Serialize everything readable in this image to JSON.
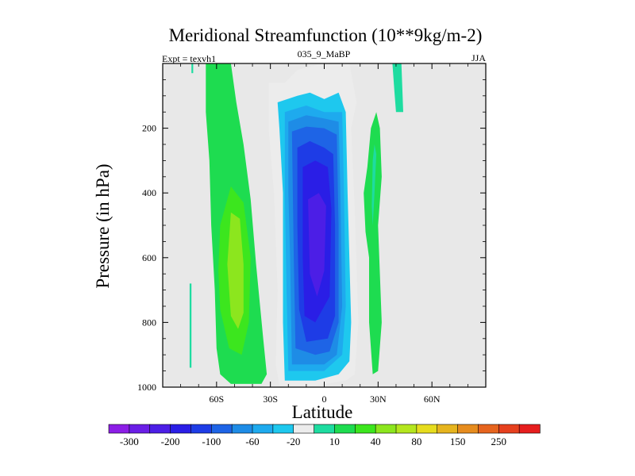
{
  "header": {
    "title": "Meridional Streamfunction (10**9kg/m-2)",
    "left_label": "Expt = texvh1",
    "center_label": "035_9_MaBP",
    "right_label": "JJA"
  },
  "chart_data": {
    "type": "contour",
    "title": "Meridional Streamfunction (10**9kg/m-2)",
    "xlabel": "Latitude",
    "ylabel": "Pressure (in hPa)",
    "xlim": [
      -90,
      90
    ],
    "ylim": [
      1000,
      0
    ],
    "x_ticks": [
      {
        "value": -60,
        "label": "60S"
      },
      {
        "value": -30,
        "label": "30S"
      },
      {
        "value": 0,
        "label": "0"
      },
      {
        "value": 30,
        "label": "30N"
      },
      {
        "value": 60,
        "label": "60N"
      }
    ],
    "y_ticks": [
      {
        "value": 200,
        "label": "200"
      },
      {
        "value": 400,
        "label": "400"
      },
      {
        "value": 600,
        "label": "600"
      },
      {
        "value": 800,
        "label": "800"
      },
      {
        "value": 1000,
        "label": "1000"
      }
    ],
    "background_color": "#e8e8e8",
    "colorbar": {
      "colors": [
        "#8c1ee6",
        "#6a1ee6",
        "#4c1ee6",
        "#2a1ee6",
        "#1e3ce6",
        "#1e64e6",
        "#1e8ce6",
        "#1eaaee",
        "#1ec8ee",
        "#ececec",
        "#1edca0",
        "#1edc50",
        "#3ce61e",
        "#8ce61e",
        "#b4e61e",
        "#e6dc1e",
        "#e6b41e",
        "#e68c1e",
        "#e6641e",
        "#e6401e",
        "#e61e1e"
      ],
      "labels": [
        {
          "boundary": 1,
          "text": "-300"
        },
        {
          "boundary": 3,
          "text": "-200"
        },
        {
          "boundary": 5,
          "text": "-100"
        },
        {
          "boundary": 7,
          "text": "-60"
        },
        {
          "boundary": 9,
          "text": "-20"
        },
        {
          "boundary": 11,
          "text": "10"
        },
        {
          "boundary": 13,
          "text": "40"
        },
        {
          "boundary": 15,
          "text": "80"
        },
        {
          "boundary": 17,
          "text": "150"
        },
        {
          "boundary": 19,
          "text": "250"
        }
      ]
    },
    "regions": [
      {
        "name": "southern-cell-outer",
        "level": 11,
        "poly": [
          [
            -60,
            0
          ],
          [
            -52,
            0
          ],
          [
            -49,
            120
          ],
          [
            -45,
            250
          ],
          [
            -41,
            420
          ],
          [
            -38,
            620
          ],
          [
            -34,
            850
          ],
          [
            -32,
            960
          ],
          [
            -35,
            990
          ],
          [
            -52,
            990
          ],
          [
            -58,
            960
          ],
          [
            -60,
            880
          ],
          [
            -61,
            700
          ],
          [
            -63,
            500
          ],
          [
            -64,
            300
          ],
          [
            -66,
            150
          ],
          [
            -66,
            0
          ]
        ]
      },
      {
        "name": "southern-cell-core",
        "level": 12,
        "poly": [
          [
            -58,
            500
          ],
          [
            -52,
            380
          ],
          [
            -45,
            430
          ],
          [
            -41,
            600
          ],
          [
            -42,
            800
          ],
          [
            -46,
            900
          ],
          [
            -53,
            880
          ],
          [
            -58,
            760
          ],
          [
            -59,
            640
          ]
        ]
      },
      {
        "name": "southern-cell-peak",
        "level": 13,
        "poly": [
          [
            -52,
            460
          ],
          [
            -47,
            480
          ],
          [
            -45,
            620
          ],
          [
            -45,
            770
          ],
          [
            -48,
            820
          ],
          [
            -52,
            780
          ],
          [
            -54,
            620
          ]
        ]
      },
      {
        "name": "polar-cell",
        "level": 10,
        "poly": [
          [
            -75,
            680
          ],
          [
            -74,
            680
          ],
          [
            -74,
            940
          ],
          [
            -75,
            940
          ]
        ]
      },
      {
        "name": "polar-cell-top",
        "level": 10,
        "poly": [
          [
            -74,
            0
          ],
          [
            -73,
            0
          ],
          [
            -73,
            30
          ],
          [
            -74,
            30
          ]
        ]
      },
      {
        "name": "northern-cell",
        "level": 11,
        "poly": [
          [
            22,
            400
          ],
          [
            24,
            320
          ],
          [
            26,
            200
          ],
          [
            29,
            150
          ],
          [
            31,
            200
          ],
          [
            32,
            350
          ],
          [
            30,
            500
          ],
          [
            31,
            650
          ],
          [
            32,
            800
          ],
          [
            30,
            950
          ],
          [
            27,
            960
          ],
          [
            25,
            800
          ],
          [
            25,
            600
          ],
          [
            23,
            520
          ]
        ]
      },
      {
        "name": "northern-cell-core",
        "level": 10,
        "poly": [
          [
            27,
            300
          ],
          [
            28,
            250
          ],
          [
            29,
            280
          ],
          [
            28,
            400
          ],
          [
            27,
            500
          ],
          [
            26.5,
            440
          ]
        ]
      },
      {
        "name": "upper-branch-north",
        "level": 10,
        "poly": [
          [
            38,
            0
          ],
          [
            43,
            0
          ],
          [
            44,
            150
          ],
          [
            40,
            150
          ],
          [
            39,
            80
          ]
        ]
      },
      {
        "name": "hadley-outer",
        "level": 9,
        "poly": [
          [
            -31,
            60
          ],
          [
            -22,
            60
          ],
          [
            -15,
            20
          ],
          [
            -8,
            10
          ],
          [
            0,
            0
          ],
          [
            14,
            0
          ],
          [
            18,
            120
          ],
          [
            15,
            200
          ],
          [
            17,
            450
          ],
          [
            19,
            800
          ],
          [
            17,
            960
          ],
          [
            12,
            980
          ],
          [
            -5,
            995
          ],
          [
            -25,
            995
          ],
          [
            -27,
            930
          ],
          [
            -26,
            700
          ],
          [
            -28,
            400
          ],
          [
            -31,
            200
          ]
        ]
      },
      {
        "name": "hadley-l8",
        "level": 8,
        "poly": [
          [
            -26,
            120
          ],
          [
            -15,
            100
          ],
          [
            -8,
            90
          ],
          [
            0,
            110
          ],
          [
            8,
            90
          ],
          [
            12,
            150
          ],
          [
            13,
            400
          ],
          [
            15,
            800
          ],
          [
            14,
            920
          ],
          [
            8,
            960
          ],
          [
            -5,
            980
          ],
          [
            -22,
            980
          ],
          [
            -23,
            800
          ],
          [
            -23,
            400
          ],
          [
            -25,
            200
          ]
        ]
      },
      {
        "name": "hadley-l7",
        "level": 7,
        "poly": [
          [
            -22,
            150
          ],
          [
            -10,
            130
          ],
          [
            0,
            150
          ],
          [
            10,
            150
          ],
          [
            11,
            400
          ],
          [
            12,
            750
          ],
          [
            10,
            900
          ],
          [
            0,
            950
          ],
          [
            -20,
            950
          ],
          [
            -21,
            700
          ],
          [
            -22,
            400
          ]
        ]
      },
      {
        "name": "hadley-l6",
        "level": 6,
        "poly": [
          [
            -20,
            180
          ],
          [
            -10,
            160
          ],
          [
            0,
            170
          ],
          [
            8,
            180
          ],
          [
            9,
            400
          ],
          [
            10,
            750
          ],
          [
            7,
            900
          ],
          [
            0,
            930
          ],
          [
            -18,
            930
          ],
          [
            -19,
            600
          ],
          [
            -20,
            400
          ]
        ]
      },
      {
        "name": "hadley-l5",
        "level": 5,
        "poly": [
          [
            -18,
            210
          ],
          [
            -10,
            195
          ],
          [
            0,
            200
          ],
          [
            7,
            220
          ],
          [
            8,
            500
          ],
          [
            8,
            800
          ],
          [
            3,
            890
          ],
          [
            -5,
            900
          ],
          [
            -16,
            880
          ],
          [
            -17,
            600
          ]
        ]
      },
      {
        "name": "hadley-l4",
        "level": 4,
        "poly": [
          [
            -15,
            260
          ],
          [
            -8,
            240
          ],
          [
            0,
            260
          ],
          [
            5,
            280
          ],
          [
            6,
            500
          ],
          [
            6,
            780
          ],
          [
            2,
            850
          ],
          [
            -10,
            860
          ],
          [
            -14,
            760
          ],
          [
            -15,
            500
          ]
        ]
      },
      {
        "name": "hadley-l3",
        "level": 3,
        "poly": [
          [
            -12,
            320
          ],
          [
            -5,
            300
          ],
          [
            2,
            320
          ],
          [
            4,
            450
          ],
          [
            3,
            720
          ],
          [
            -5,
            800
          ],
          [
            -11,
            780
          ],
          [
            -12,
            600
          ]
        ]
      },
      {
        "name": "hadley-l2",
        "level": 2,
        "poly": [
          [
            -9,
            420
          ],
          [
            -3,
            400
          ],
          [
            1,
            440
          ],
          [
            0,
            640
          ],
          [
            -4,
            720
          ],
          [
            -8,
            650
          ]
        ]
      }
    ]
  }
}
